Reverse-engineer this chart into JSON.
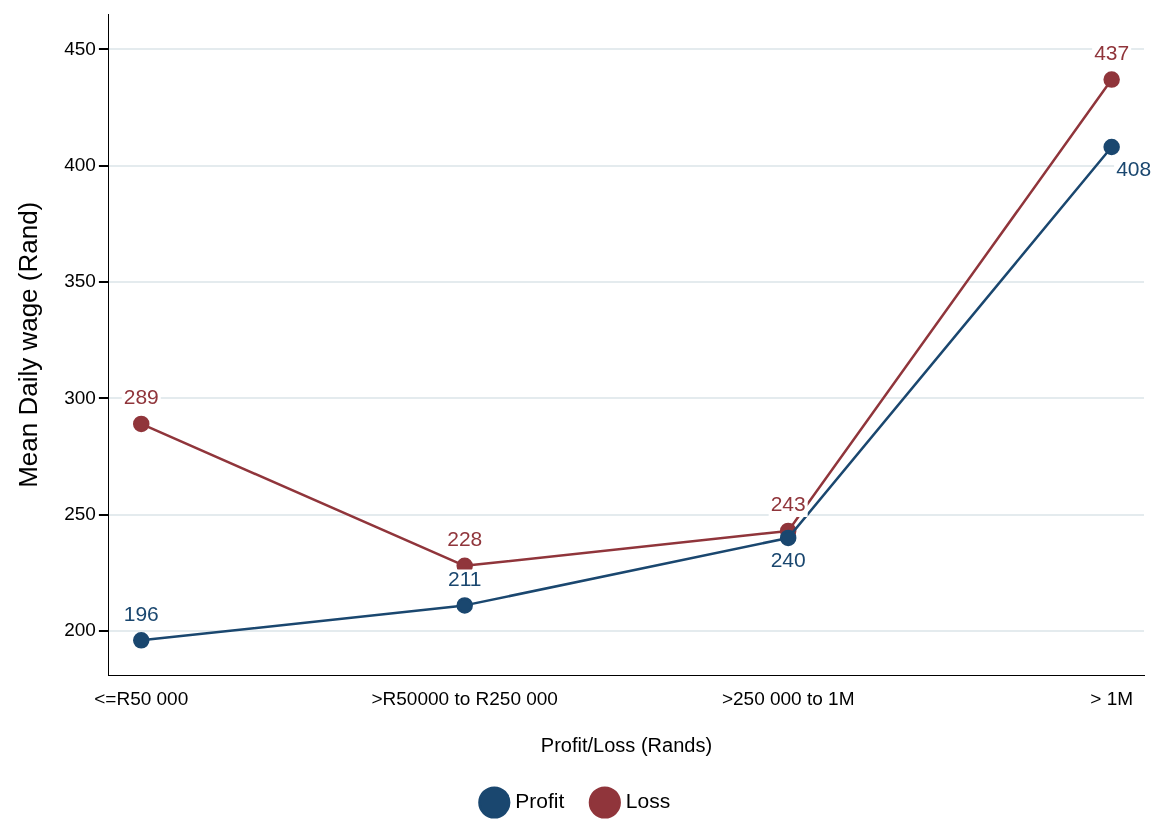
{
  "chart_data": {
    "type": "line",
    "xlabel": "Profit/Loss (Rands)",
    "ylabel": "Mean Daily wage (Rand)",
    "categories": [
      "<=R50 000",
      ">R50000 to R250 000",
      ">250 000 to 1M",
      "> 1M"
    ],
    "series": [
      {
        "name": "Profit",
        "color": "#1a476f",
        "values": [
          196,
          211,
          240,
          408
        ]
      },
      {
        "name": "Loss",
        "color": "#90353b",
        "values": [
          289,
          228,
          243,
          437
        ]
      }
    ],
    "ylim": [
      181,
      465
    ],
    "yticks": [
      200,
      250,
      300,
      350,
      400,
      450
    ],
    "grid": "y",
    "legend": "bottom",
    "marker": "circle",
    "line_style": "solid",
    "data_labels": true
  }
}
